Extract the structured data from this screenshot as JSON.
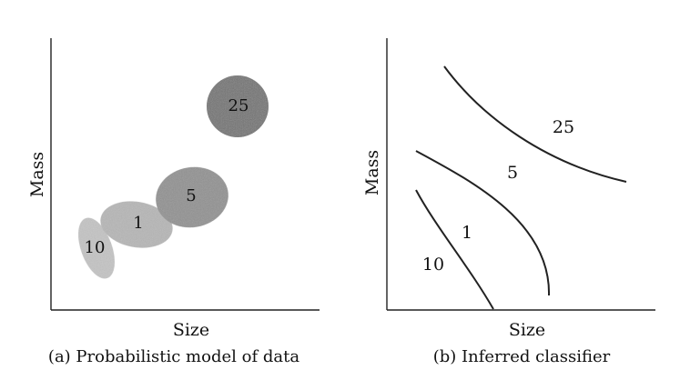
{
  "panel_a": {
    "x_label": "Size",
    "y_label": "Mass",
    "caption": "(a) Probabilistic model of data",
    "clusters": [
      {
        "label": "10",
        "shade": "#c4c4c4"
      },
      {
        "label": "1",
        "shade": "#b6b6b6"
      },
      {
        "label": "5",
        "shade": "#8e8e8e"
      },
      {
        "label": "25",
        "shade": "#6e6e6e"
      }
    ]
  },
  "panel_b": {
    "x_label": "Size",
    "y_label": "Mass",
    "caption": "(b) Inferred classifier",
    "regions": [
      {
        "label": "10"
      },
      {
        "label": "1"
      },
      {
        "label": "5"
      },
      {
        "label": "25"
      }
    ]
  }
}
